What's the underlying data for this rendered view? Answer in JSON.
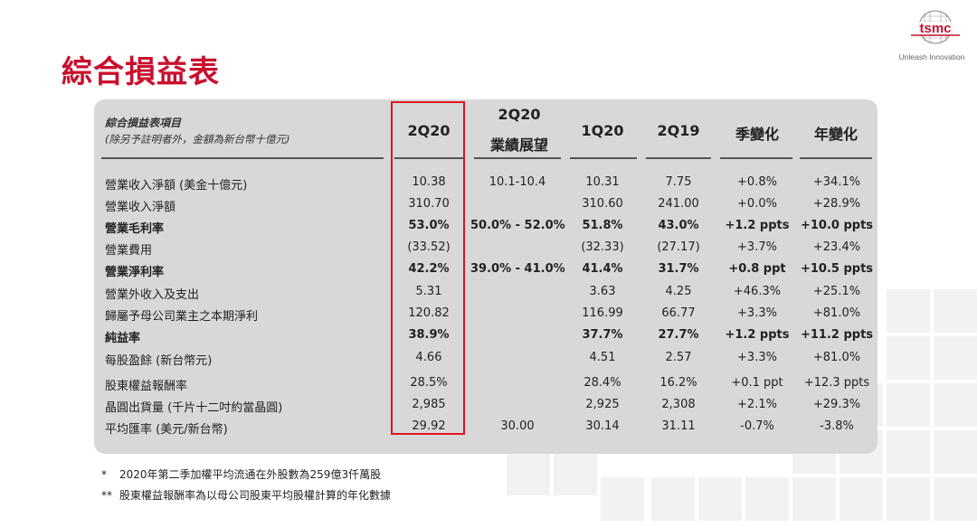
{
  "title": "綜合損益表",
  "brand": {
    "logo_text": "tsmc",
    "tagline": "Unleash Innovation",
    "color": "#c8102e"
  },
  "table": {
    "header_desc_line1": "綜合損益表項目",
    "header_desc_line2": "(除另予註明者外，金額為新台幣十億元)",
    "columns": [
      {
        "label": "2Q20"
      },
      {
        "label_line1": "2Q20",
        "label_line2": "業績展望"
      },
      {
        "label": "1Q20"
      },
      {
        "label": "2Q19"
      },
      {
        "label": "季變化"
      },
      {
        "label": "年變化"
      }
    ],
    "rows": [
      {
        "label": "營業收入淨額 (美金十億元)",
        "bold": false,
        "q2_20": "10.38",
        "guidance": "10.1-10.4",
        "q1_20": "10.31",
        "q2_19": "7.75",
        "qoq": "+0.8%",
        "yoy": "+34.1%"
      },
      {
        "label": "營業收入淨額",
        "bold": false,
        "q2_20": "310.70",
        "guidance": "",
        "q1_20": "310.60",
        "q2_19": "241.00",
        "qoq": "+0.0%",
        "yoy": "+28.9%"
      },
      {
        "label": "營業毛利率",
        "bold": true,
        "q2_20": "53.0%",
        "guidance": "50.0% - 52.0%",
        "q1_20": "51.8%",
        "q2_19": "43.0%",
        "qoq": "+1.2 ppts",
        "yoy": "+10.0 ppts"
      },
      {
        "label": "營業費用",
        "bold": false,
        "q2_20": "(33.52)",
        "guidance": "",
        "q1_20": "(32.33)",
        "q2_19": "(27.17)",
        "qoq": "+3.7%",
        "yoy": "+23.4%"
      },
      {
        "label": "營業淨利率",
        "bold": true,
        "q2_20": "42.2%",
        "guidance": "39.0% - 41.0%",
        "q1_20": "41.4%",
        "q2_19": "31.7%",
        "qoq": "+0.8 ppt",
        "yoy": "+10.5 ppts"
      },
      {
        "label": "營業外收入及支出",
        "bold": false,
        "q2_20": "5.31",
        "guidance": "",
        "q1_20": "3.63",
        "q2_19": "4.25",
        "qoq": "+46.3%",
        "yoy": "+25.1%"
      },
      {
        "label": "歸屬予母公司業主之本期淨利",
        "bold": false,
        "q2_20": "120.82",
        "guidance": "",
        "q1_20": "116.99",
        "q2_19": "66.77",
        "qoq": "+3.3%",
        "yoy": "+81.0%"
      },
      {
        "label": "純益率",
        "bold": true,
        "q2_20": "38.9%",
        "guidance": "",
        "q1_20": "37.7%",
        "q2_19": "27.7%",
        "qoq": "+1.2 ppts",
        "yoy": "+11.2 ppts"
      },
      {
        "label": "每股盈餘 (新台幣元)",
        "bold": false,
        "q2_20": "4.66",
        "guidance": "",
        "q1_20": "4.51",
        "q2_19": "2.57",
        "qoq": "+3.3%",
        "yoy": "+81.0%"
      },
      {
        "label": "股東權益報酬率",
        "bold": false,
        "q2_20": "28.5%",
        "guidance": "",
        "q1_20": "28.4%",
        "q2_19": "16.2%",
        "qoq": "+0.1 ppt",
        "yoy": "+12.3 ppts"
      },
      {
        "label": "晶圓出貨量 (千片十二吋約當晶圓)",
        "bold": false,
        "q2_20": "2,985",
        "guidance": "",
        "q1_20": "2,925",
        "q2_19": "2,308",
        "qoq": "+2.1%",
        "yoy": "+29.3%"
      },
      {
        "label": "平均匯率 (美元/新台幣)",
        "bold": false,
        "q2_20": "29.92",
        "guidance": "30.00",
        "q1_20": "30.14",
        "q2_19": "31.11",
        "qoq": "-0.7%",
        "yoy": "-3.8%"
      }
    ]
  },
  "highlight_color": "#e0141e",
  "footnotes": [
    {
      "mark": "*",
      "text": "2020年第二季加權平均流通在外股數為259億3仟萬股"
    },
    {
      "mark": "**",
      "text": "股東權益報酬率為以母公司股東平均股權計算的年化數據"
    }
  ]
}
